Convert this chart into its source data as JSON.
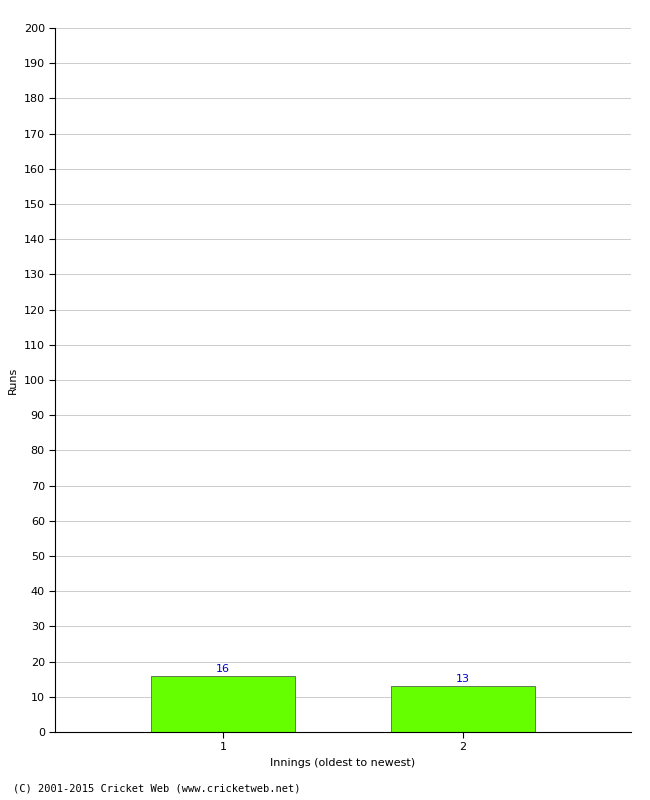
{
  "categories": [
    "1",
    "2"
  ],
  "values": [
    16,
    13
  ],
  "bar_color": "#66ff00",
  "bar_edge_color": "#444444",
  "ylabel": "Runs",
  "xlabel": "Innings (oldest to newest)",
  "ylim": [
    0,
    200
  ],
  "yticks": [
    0,
    10,
    20,
    30,
    40,
    50,
    60,
    70,
    80,
    90,
    100,
    110,
    120,
    130,
    140,
    150,
    160,
    170,
    180,
    190,
    200
  ],
  "value_label_color": "#0000cc",
  "value_label_fontsize": 8,
  "axis_label_fontsize": 8,
  "tick_fontsize": 8,
  "footer_text": "(C) 2001-2015 Cricket Web (www.cricketweb.net)",
  "background_color": "#ffffff",
  "grid_color": "#cccccc",
  "bar_width": 0.6,
  "xlim": [
    0.3,
    2.7
  ]
}
